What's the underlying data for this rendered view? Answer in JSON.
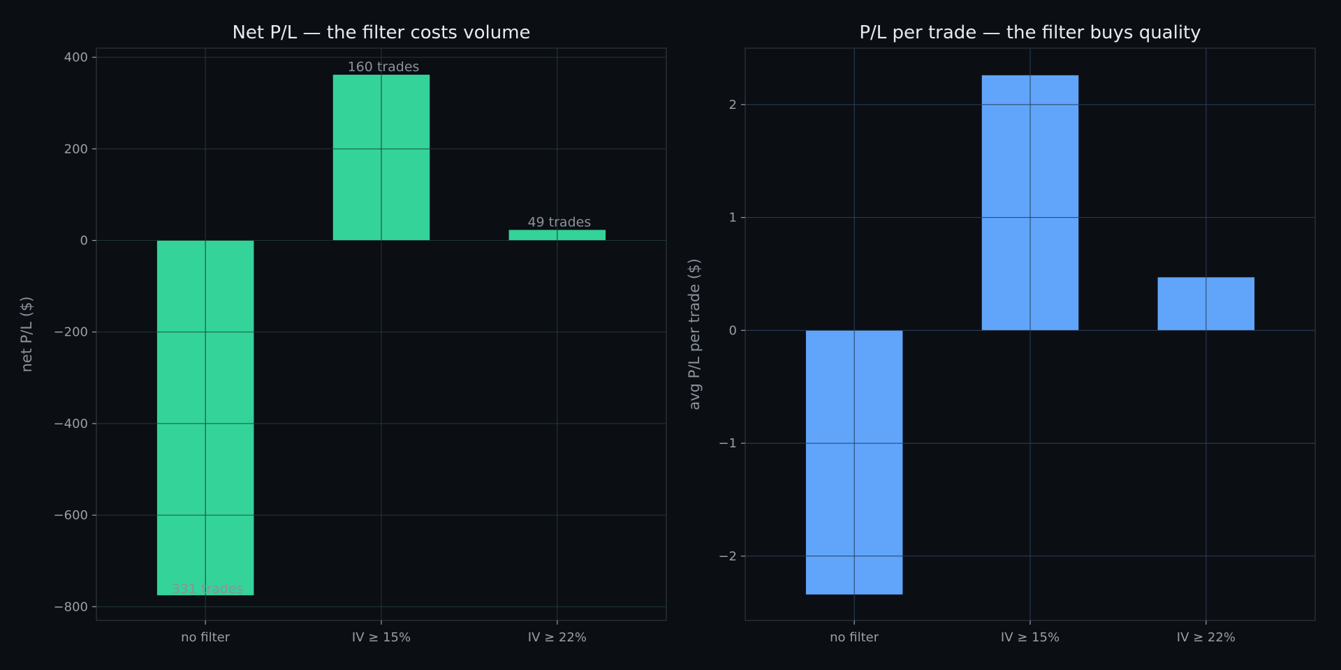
{
  "chart_data": [
    {
      "type": "bar",
      "title": "Net P/L — the filter costs volume",
      "xlabel": "",
      "ylabel": "net P/L ($)",
      "categories": [
        "no filter",
        "IV ≥ 15%",
        "IV ≥ 22%"
      ],
      "values": [
        -775,
        362,
        23
      ],
      "annotations": [
        "331 trades",
        "160 trades",
        "49 trades"
      ],
      "ylim": [
        -830,
        420
      ],
      "yticks": [
        -800,
        -600,
        -400,
        -200,
        0,
        200,
        400
      ],
      "ytick_labels": [
        "−800",
        "−600",
        "−400",
        "−200",
        "0",
        "200",
        "400"
      ],
      "color": "#34d399",
      "grid": true
    },
    {
      "type": "bar",
      "title": "P/L per trade — the filter buys quality",
      "xlabel": "",
      "ylabel": "avg P/L per trade ($)",
      "categories": [
        "no filter",
        "IV ≥ 15%",
        "IV ≥ 22%"
      ],
      "values": [
        -2.34,
        2.26,
        0.47
      ],
      "annotations": [],
      "ylim": [
        -2.57,
        2.5
      ],
      "yticks": [
        -2,
        -1,
        0,
        1,
        2
      ],
      "ytick_labels": [
        "−2",
        "−1",
        "0",
        "1",
        "2"
      ],
      "color": "#60a5fa",
      "grid": true
    }
  ]
}
